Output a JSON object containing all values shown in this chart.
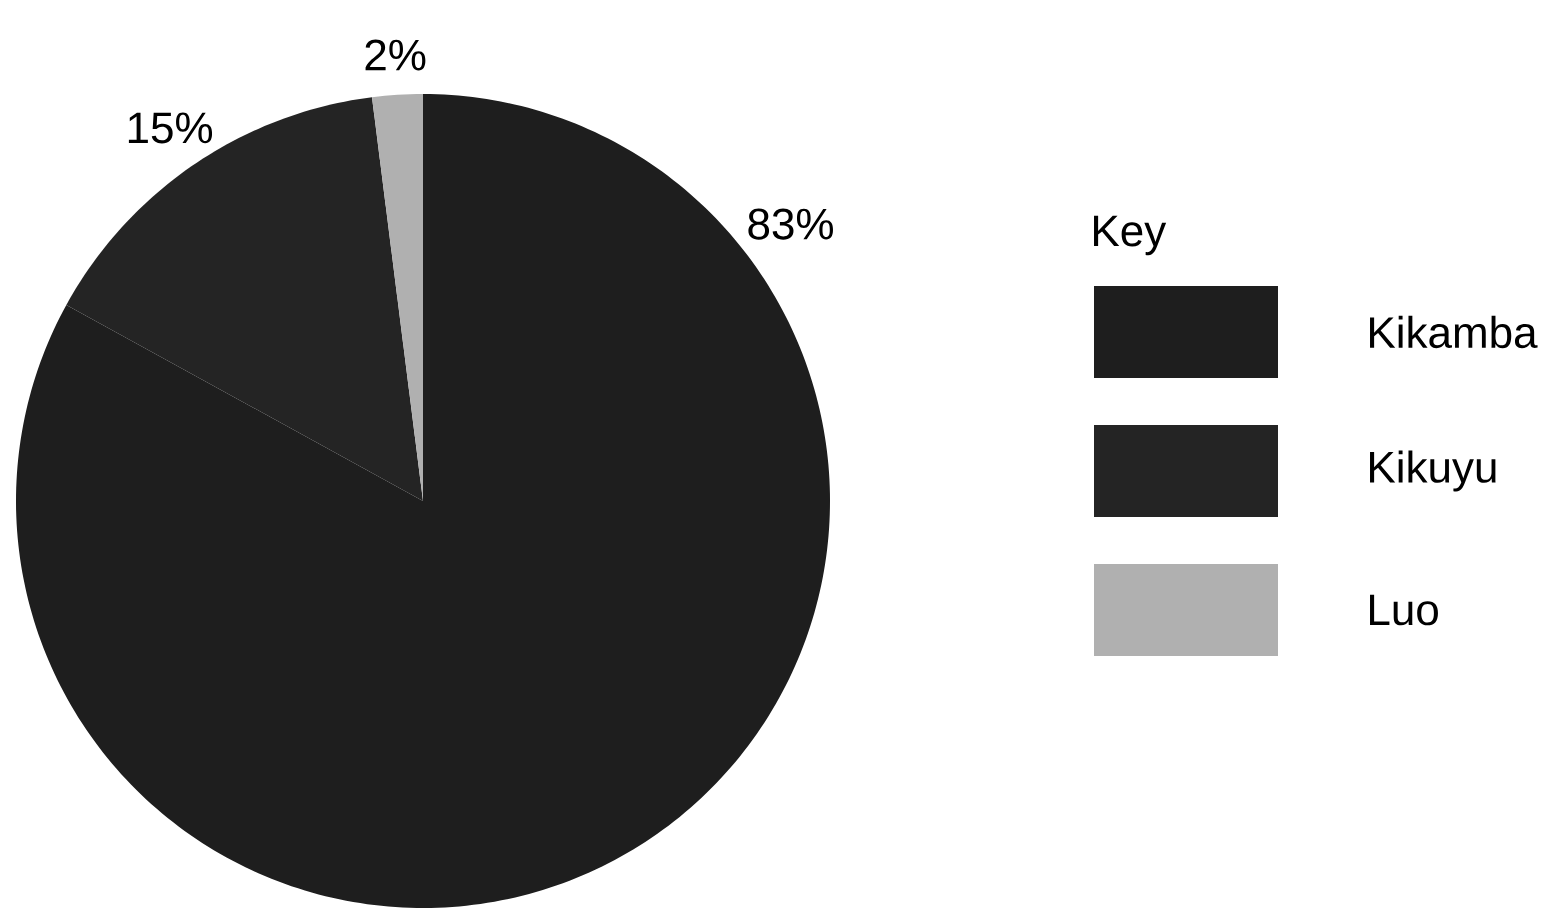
{
  "chart_data": {
    "type": "pie",
    "categories": [
      "Kikamba",
      "Kikuyu",
      "Luo"
    ],
    "values": [
      83,
      15,
      2
    ],
    "colors": [
      "#1e1e1e",
      "#242424",
      "#b0b0b0"
    ],
    "value_labels": [
      "83%",
      "15%",
      "2%"
    ],
    "legend": "right",
    "legend_title": "Key"
  }
}
